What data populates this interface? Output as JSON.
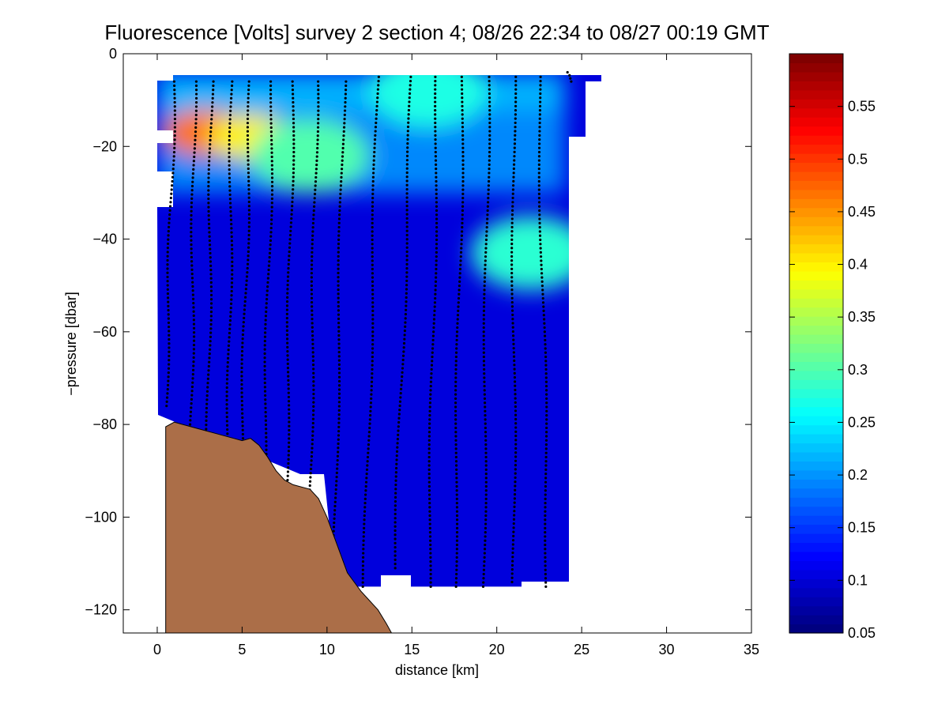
{
  "chart_data": {
    "type": "heatmap",
    "title": "Fluorescence [Volts] survey 2 section 4; 08/26 22:34 to 08/27 00:19 GMT",
    "xlabel": "distance [km]",
    "ylabel": "−pressure [dbar]",
    "xlim": [
      -2,
      35
    ],
    "ylim": [
      -125,
      0
    ],
    "x_ticks": [
      0,
      5,
      10,
      15,
      20,
      25,
      30,
      35
    ],
    "x_tick_labels": [
      "0",
      "5",
      "10",
      "15",
      "20",
      "25",
      "30",
      "35"
    ],
    "y_ticks": [
      0,
      -20,
      -40,
      -60,
      -80,
      -100,
      -120
    ],
    "y_tick_labels": [
      "0",
      "−20",
      "−40",
      "−60",
      "−80",
      "−100",
      "−120"
    ],
    "colorbar": {
      "colormap": "jet",
      "range": [
        0.05,
        0.6
      ],
      "ticks": [
        0.05,
        0.1,
        0.15,
        0.2,
        0.25,
        0.3,
        0.35,
        0.4,
        0.45,
        0.5,
        0.55
      ],
      "tick_labels": [
        "0.05",
        "0.1",
        "0.15",
        "0.2",
        "0.25",
        "0.3",
        "0.35",
        "0.4",
        "0.45",
        "0.5",
        "0.55"
      ]
    },
    "background_value": 0.1,
    "field_features": [
      {
        "feature": "chlorophyll maximum",
        "x": 2.8,
        "depth": -17,
        "value": 0.47
      },
      {
        "feature": "chlorophyll maximum",
        "x": 5.5,
        "depth": -18,
        "value": 0.4
      },
      {
        "feature": "subsurface layer",
        "x": 9.0,
        "depth": -22,
        "value": 0.3
      },
      {
        "feature": "near-surface layer",
        "x": 16.0,
        "depth": -8,
        "value": 0.27
      },
      {
        "feature": "mid-depth patch",
        "x": 22.0,
        "depth": -43,
        "value": 0.28
      }
    ],
    "data_extent": {
      "x_min": 0,
      "x_max": 26.3,
      "top_depth": -4,
      "bottom_depth": -115
    },
    "seafloor_outline": [
      [
        0.5,
        -125
      ],
      [
        0.5,
        -80.5
      ],
      [
        1.0,
        -79.5
      ],
      [
        1.5,
        -80
      ],
      [
        2.5,
        -81
      ],
      [
        3.5,
        -82
      ],
      [
        4.5,
        -83
      ],
      [
        5.0,
        -83.5
      ],
      [
        5.5,
        -83
      ],
      [
        6.0,
        -84.5
      ],
      [
        6.5,
        -87
      ],
      [
        7.0,
        -90
      ],
      [
        7.5,
        -92
      ],
      [
        8.0,
        -93
      ],
      [
        9.0,
        -94
      ],
      [
        9.5,
        -96
      ],
      [
        10.0,
        -100
      ],
      [
        10.4,
        -104
      ],
      [
        10.8,
        -108
      ],
      [
        11.2,
        -112
      ],
      [
        11.6,
        -114
      ],
      [
        12.0,
        -116
      ],
      [
        12.5,
        -118
      ],
      [
        13.0,
        -120
      ],
      [
        13.5,
        -123
      ],
      [
        13.8,
        -125
      ]
    ],
    "casts": [
      {
        "x_top": 1.0,
        "x_bottom": 0.5,
        "top": -6,
        "bottom": -76
      },
      {
        "x_top": 2.2,
        "x_bottom": 2.0,
        "top": -6,
        "bottom": -80
      },
      {
        "x_top": 3.2,
        "x_bottom": 3.0,
        "top": -6,
        "bottom": -81
      },
      {
        "x_top": 4.4,
        "x_bottom": 4.2,
        "top": -6,
        "bottom": -82
      },
      {
        "x_top": 5.5,
        "x_bottom": 5.0,
        "top": -6,
        "bottom": -83
      },
      {
        "x_top": 6.8,
        "x_bottom": 6.3,
        "top": -6,
        "bottom": -90
      },
      {
        "x_top": 8.0,
        "x_bottom": 7.6,
        "top": -6,
        "bottom": -92
      },
      {
        "x_top": 9.4,
        "x_bottom": 9.0,
        "top": -6,
        "bottom": -95
      },
      {
        "x_top": 11.0,
        "x_bottom": 10.4,
        "top": -6,
        "bottom": -112
      },
      {
        "x_top": 13.0,
        "x_bottom": 12.2,
        "top": -5,
        "bottom": -115
      },
      {
        "x_top": 15.0,
        "x_bottom": 14.0,
        "top": -5,
        "bottom": -111
      },
      {
        "x_top": 16.5,
        "x_bottom": 16.0,
        "top": -5,
        "bottom": -115
      },
      {
        "x_top": 18.0,
        "x_bottom": 17.5,
        "top": -5,
        "bottom": -115
      },
      {
        "x_top": 19.5,
        "x_bottom": 19.2,
        "top": -5,
        "bottom": -115
      },
      {
        "x_top": 21.0,
        "x_bottom": 21.0,
        "top": -5,
        "bottom": -114
      },
      {
        "x_top": 22.5,
        "x_bottom": 23.0,
        "top": -5,
        "bottom": -115
      },
      {
        "x_top": 24.2,
        "x_bottom": 24.4,
        "top": -4,
        "bottom": -6
      }
    ],
    "seafloor_color": "#ab6e48",
    "grid": false,
    "legend": "colorbar-right"
  }
}
